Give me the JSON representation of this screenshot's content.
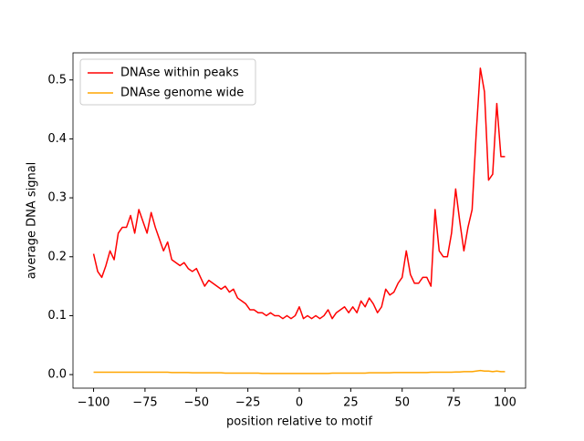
{
  "chart_data": {
    "type": "line",
    "x": [
      -100,
      -98,
      -96,
      -94,
      -92,
      -90,
      -88,
      -86,
      -84,
      -82,
      -80,
      -78,
      -76,
      -74,
      -72,
      -70,
      -68,
      -66,
      -64,
      -62,
      -60,
      -58,
      -56,
      -54,
      -52,
      -50,
      -48,
      -46,
      -44,
      -42,
      -40,
      -38,
      -36,
      -34,
      -32,
      -30,
      -28,
      -26,
      -24,
      -22,
      -20,
      -18,
      -16,
      -14,
      -12,
      -10,
      -8,
      -6,
      -4,
      -2,
      0,
      2,
      4,
      6,
      8,
      10,
      12,
      14,
      16,
      18,
      20,
      22,
      24,
      26,
      28,
      30,
      32,
      34,
      36,
      38,
      40,
      42,
      44,
      46,
      48,
      50,
      52,
      54,
      56,
      58,
      60,
      62,
      64,
      66,
      68,
      70,
      72,
      74,
      76,
      78,
      80,
      82,
      84,
      86,
      88,
      90,
      92,
      94,
      96,
      98,
      100
    ],
    "series": [
      {
        "name": "DNAse within peaks",
        "color": "#ff0000",
        "values": [
          0.205,
          0.175,
          0.165,
          0.185,
          0.21,
          0.195,
          0.24,
          0.25,
          0.25,
          0.27,
          0.24,
          0.28,
          0.26,
          0.24,
          0.275,
          0.25,
          0.23,
          0.21,
          0.225,
          0.195,
          0.19,
          0.185,
          0.19,
          0.18,
          0.175,
          0.18,
          0.165,
          0.15,
          0.16,
          0.155,
          0.15,
          0.145,
          0.15,
          0.14,
          0.145,
          0.13,
          0.125,
          0.12,
          0.11,
          0.11,
          0.105,
          0.105,
          0.1,
          0.105,
          0.1,
          0.1,
          0.095,
          0.1,
          0.095,
          0.1,
          0.115,
          0.095,
          0.1,
          0.095,
          0.1,
          0.095,
          0.1,
          0.11,
          0.095,
          0.105,
          0.11,
          0.115,
          0.105,
          0.115,
          0.105,
          0.125,
          0.115,
          0.13,
          0.12,
          0.105,
          0.115,
          0.145,
          0.135,
          0.14,
          0.155,
          0.165,
          0.21,
          0.17,
          0.155,
          0.155,
          0.165,
          0.165,
          0.15,
          0.28,
          0.21,
          0.2,
          0.2,
          0.24,
          0.315,
          0.26,
          0.21,
          0.25,
          0.28,
          0.41,
          0.52,
          0.48,
          0.33,
          0.34,
          0.46,
          0.37,
          0.37
        ]
      },
      {
        "name": "DNAse genome wide",
        "color": "#ffa500",
        "values": [
          0.004,
          0.004,
          0.004,
          0.004,
          0.004,
          0.004,
          0.004,
          0.004,
          0.004,
          0.004,
          0.004,
          0.004,
          0.004,
          0.004,
          0.004,
          0.004,
          0.004,
          0.004,
          0.004,
          0.0035,
          0.0035,
          0.0035,
          0.0035,
          0.0035,
          0.003,
          0.003,
          0.003,
          0.003,
          0.003,
          0.003,
          0.003,
          0.003,
          0.0025,
          0.0025,
          0.0025,
          0.0025,
          0.0025,
          0.0025,
          0.0025,
          0.0025,
          0.0025,
          0.002,
          0.002,
          0.002,
          0.002,
          0.002,
          0.002,
          0.002,
          0.002,
          0.002,
          0.002,
          0.002,
          0.002,
          0.002,
          0.002,
          0.002,
          0.002,
          0.002,
          0.0025,
          0.0025,
          0.0025,
          0.0025,
          0.0025,
          0.0025,
          0.0025,
          0.0025,
          0.0025,
          0.003,
          0.003,
          0.003,
          0.003,
          0.003,
          0.003,
          0.0035,
          0.0035,
          0.0035,
          0.0035,
          0.0035,
          0.0035,
          0.0035,
          0.0035,
          0.0035,
          0.004,
          0.004,
          0.004,
          0.004,
          0.004,
          0.004,
          0.0045,
          0.0045,
          0.005,
          0.005,
          0.005,
          0.006,
          0.007,
          0.006,
          0.006,
          0.005,
          0.006,
          0.005,
          0.005
        ]
      }
    ],
    "xlabel": "position relative to motif",
    "ylabel": "average DNA signal",
    "xlim": [
      -110,
      110
    ],
    "ylim": [
      -0.023,
      0.546
    ],
    "xticks": [
      {
        "value": -100,
        "label": "−100"
      },
      {
        "value": -75,
        "label": "−75"
      },
      {
        "value": -50,
        "label": "−50"
      },
      {
        "value": -25,
        "label": "−25"
      },
      0,
      25,
      50,
      75,
      100
    ],
    "yticks": [
      {
        "value": 0,
        "label": "0.0"
      },
      0.1,
      0.2,
      0.3,
      0.4,
      0.5
    ],
    "legend": "upper left"
  }
}
